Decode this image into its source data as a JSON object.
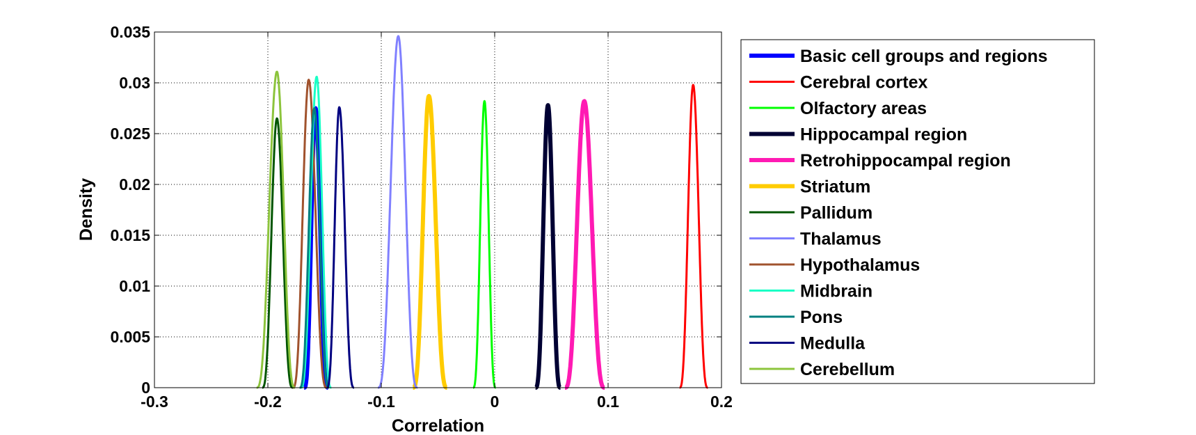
{
  "chart_data": {
    "type": "line",
    "title": "",
    "xlabel": "Correlation",
    "ylabel": "Density",
    "xlim": [
      -0.3,
      0.2
    ],
    "ylim": [
      0,
      0.035
    ],
    "xticks": [
      -0.3,
      -0.2,
      -0.1,
      0,
      0.1,
      0.2
    ],
    "xtick_labels": [
      "-0.3",
      "-0.2",
      "-0.1",
      "0",
      "0.1",
      "0.2"
    ],
    "yticks": [
      0,
      0.005,
      0.01,
      0.015,
      0.02,
      0.025,
      0.03,
      0.035
    ],
    "ytick_labels": [
      "0",
      "0.005",
      "0.01",
      "0.015",
      "0.02",
      "0.025",
      "0.03",
      "0.035"
    ],
    "grid": true,
    "legend_placement": "outside-right",
    "series": [
      {
        "name": "Basic cell groups and regions",
        "color": "#0000ff",
        "bold": true,
        "center": -0.158,
        "peak": 0.0275,
        "support": [
          -0.168,
          -0.147
        ]
      },
      {
        "name": "Cerebral cortex",
        "color": "#ff0000",
        "bold": false,
        "center": 0.175,
        "peak": 0.0298,
        "support": [
          0.163,
          0.188
        ]
      },
      {
        "name": "Olfactory areas",
        "color": "#00ff00",
        "bold": false,
        "center": -0.009,
        "peak": 0.0282,
        "support": [
          -0.019,
          0.001
        ]
      },
      {
        "name": "Hippocampal region",
        "color": "#000033",
        "bold": true,
        "center": 0.047,
        "peak": 0.0278,
        "support": [
          0.036,
          0.058
        ]
      },
      {
        "name": "Retrohippocampal region",
        "color": "#ff1ab3",
        "bold": true,
        "center": 0.079,
        "peak": 0.0282,
        "support": [
          0.062,
          0.097
        ]
      },
      {
        "name": "Striatum",
        "color": "#ffcc00",
        "bold": true,
        "center": -0.058,
        "peak": 0.0287,
        "support": [
          -0.072,
          -0.042
        ]
      },
      {
        "name": "Pallidum",
        "color": "#005500",
        "bold": false,
        "center": -0.192,
        "peak": 0.0265,
        "support": [
          -0.205,
          -0.178
        ]
      },
      {
        "name": "Thalamus",
        "color": "#8080ff",
        "bold": false,
        "center": -0.085,
        "peak": 0.0346,
        "support": [
          -0.103,
          -0.068
        ]
      },
      {
        "name": "Hypothalamus",
        "color": "#a0522d",
        "bold": false,
        "center": -0.164,
        "peak": 0.0303,
        "support": [
          -0.178,
          -0.148
        ]
      },
      {
        "name": "Midbrain",
        "color": "#1affc6",
        "bold": false,
        "center": -0.157,
        "peak": 0.0306,
        "support": [
          -0.171,
          -0.144
        ]
      },
      {
        "name": "Pons",
        "color": "#008080",
        "bold": false,
        "center": -0.159,
        "peak": 0.0275,
        "support": [
          -0.172,
          -0.146
        ]
      },
      {
        "name": "Medulla",
        "color": "#000080",
        "bold": false,
        "center": -0.137,
        "peak": 0.0276,
        "support": [
          -0.148,
          -0.124
        ]
      },
      {
        "name": "Cerebellum",
        "color": "#8cc43c",
        "bold": false,
        "center": -0.192,
        "peak": 0.0311,
        "support": [
          -0.21,
          -0.176
        ]
      }
    ]
  }
}
